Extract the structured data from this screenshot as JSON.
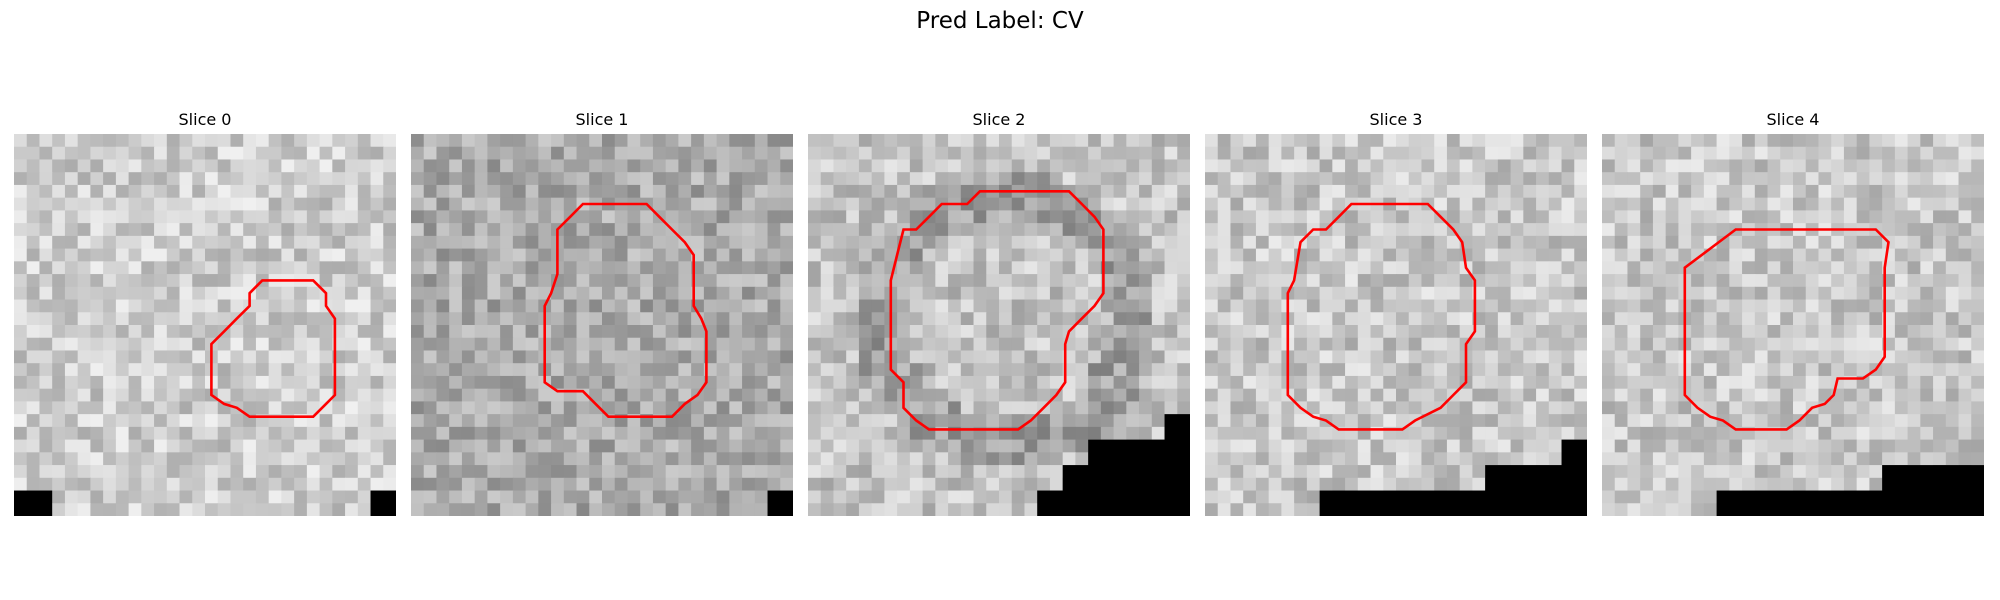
{
  "figure": {
    "title": "Pred Label: CV",
    "contour_color": "#ff0000",
    "mask_color": "#000000",
    "grid_size": 30
  },
  "slices": [
    {
      "title": "Slice 0",
      "base_gray": 205,
      "dark_blob": null,
      "contour": [
        [
          17.5,
          14.5
        ],
        [
          18.5,
          13.5
        ],
        [
          18.5,
          12.5
        ],
        [
          19.5,
          11.5
        ],
        [
          23.5,
          11.5
        ],
        [
          24.5,
          12.5
        ],
        [
          24.5,
          13.5
        ],
        [
          25.2,
          14.5
        ],
        [
          25.2,
          20.5
        ],
        [
          24.5,
          21.2
        ],
        [
          23.5,
          22.2
        ],
        [
          18.5,
          22.2
        ],
        [
          17.5,
          21.5
        ],
        [
          16.5,
          21.2
        ],
        [
          15.5,
          20.5
        ],
        [
          15.5,
          16.5
        ],
        [
          16.5,
          15.5
        ]
      ],
      "mask_rects": [
        [
          0,
          28,
          3,
          2
        ],
        [
          28,
          28,
          2,
          2
        ]
      ]
    },
    {
      "title": "Slice 1",
      "base_gray": 170,
      "dark_blob": null,
      "contour": [
        [
          11.5,
          7.5
        ],
        [
          12.5,
          6.5
        ],
        [
          13.5,
          5.5
        ],
        [
          18.5,
          5.5
        ],
        [
          19.5,
          6.5
        ],
        [
          20.5,
          7.5
        ],
        [
          21.5,
          8.5
        ],
        [
          22.2,
          9.5
        ],
        [
          22.2,
          13.5
        ],
        [
          22.8,
          14.5
        ],
        [
          23.2,
          15.5
        ],
        [
          23.2,
          19.5
        ],
        [
          22.5,
          20.5
        ],
        [
          21.5,
          21.2
        ],
        [
          20.5,
          22.2
        ],
        [
          15.5,
          22.2
        ],
        [
          14.5,
          21.2
        ],
        [
          13.5,
          20.2
        ],
        [
          11.5,
          20.2
        ],
        [
          10.5,
          19.5
        ],
        [
          10.5,
          13.5
        ],
        [
          11.0,
          12.5
        ],
        [
          11.5,
          11.0
        ]
      ],
      "mask_rects": [
        [
          28,
          28,
          2,
          2
        ]
      ]
    },
    {
      "title": "Slice 2",
      "base_gray": 195,
      "dark_blob": [
        7.5,
        15,
        10
      ],
      "contour": [
        [
          7.5,
          7.5
        ],
        [
          8.5,
          7.5
        ],
        [
          9.5,
          6.5
        ],
        [
          10.5,
          5.5
        ],
        [
          12.5,
          5.5
        ],
        [
          13.5,
          4.5
        ],
        [
          20.5,
          4.5
        ],
        [
          21.5,
          5.5
        ],
        [
          22.5,
          6.5
        ],
        [
          23.2,
          7.5
        ],
        [
          23.2,
          12.5
        ],
        [
          22.5,
          13.5
        ],
        [
          21.5,
          14.5
        ],
        [
          20.5,
          15.5
        ],
        [
          20.2,
          16.5
        ],
        [
          20.2,
          19.5
        ],
        [
          19.5,
          20.5
        ],
        [
          18.5,
          21.5
        ],
        [
          17.5,
          22.5
        ],
        [
          16.5,
          23.2
        ],
        [
          9.5,
          23.2
        ],
        [
          8.5,
          22.5
        ],
        [
          7.5,
          21.5
        ],
        [
          7.5,
          19.5
        ],
        [
          6.5,
          18.5
        ],
        [
          6.5,
          11.5
        ],
        [
          7.0,
          9.5
        ]
      ],
      "mask_rects": [
        [
          28,
          22,
          2,
          8
        ],
        [
          22,
          24,
          8,
          6
        ],
        [
          20,
          26,
          10,
          4
        ],
        [
          18,
          28,
          12,
          2
        ]
      ]
    },
    {
      "title": "Slice 3",
      "base_gray": 200,
      "dark_blob": null,
      "contour": [
        [
          7.5,
          8.5
        ],
        [
          8.5,
          7.5
        ],
        [
          9.5,
          7.5
        ],
        [
          10.5,
          6.5
        ],
        [
          11.5,
          5.5
        ],
        [
          12.5,
          5.5
        ],
        [
          17.5,
          5.5
        ],
        [
          18.5,
          6.5
        ],
        [
          19.5,
          7.5
        ],
        [
          20.2,
          8.5
        ],
        [
          20.5,
          10.5
        ],
        [
          21.2,
          11.5
        ],
        [
          21.2,
          15.5
        ],
        [
          20.5,
          16.5
        ],
        [
          20.5,
          19.5
        ],
        [
          19.5,
          20.5
        ],
        [
          18.5,
          21.5
        ],
        [
          16.5,
          22.5
        ],
        [
          15.5,
          23.2
        ],
        [
          10.5,
          23.2
        ],
        [
          9.5,
          22.5
        ],
        [
          8.5,
          22.2
        ],
        [
          7.5,
          21.5
        ],
        [
          6.5,
          20.5
        ],
        [
          6.5,
          12.5
        ],
        [
          7.0,
          11.5
        ]
      ],
      "mask_rects": [
        [
          28,
          24,
          2,
          6
        ],
        [
          22,
          26,
          8,
          4
        ],
        [
          9,
          28,
          21,
          2
        ]
      ]
    },
    {
      "title": "Slice 4",
      "base_gray": 200,
      "dark_blob": null,
      "contour": [
        [
          6.5,
          10.5
        ],
        [
          10.5,
          7.5
        ],
        [
          21.5,
          7.5
        ],
        [
          22.5,
          8.5
        ],
        [
          22.2,
          10.5
        ],
        [
          22.2,
          17.5
        ],
        [
          21.5,
          18.5
        ],
        [
          20.5,
          19.2
        ],
        [
          18.5,
          19.2
        ],
        [
          18.2,
          20.5
        ],
        [
          17.5,
          21.2
        ],
        [
          16.5,
          21.5
        ],
        [
          15.5,
          22.5
        ],
        [
          14.5,
          23.2
        ],
        [
          10.5,
          23.2
        ],
        [
          9.5,
          22.5
        ],
        [
          8.5,
          22.2
        ],
        [
          7.5,
          21.5
        ],
        [
          6.5,
          20.5
        ]
      ],
      "mask_rects": [
        [
          22,
          26,
          8,
          4
        ],
        [
          9,
          28,
          21,
          2
        ]
      ]
    }
  ]
}
